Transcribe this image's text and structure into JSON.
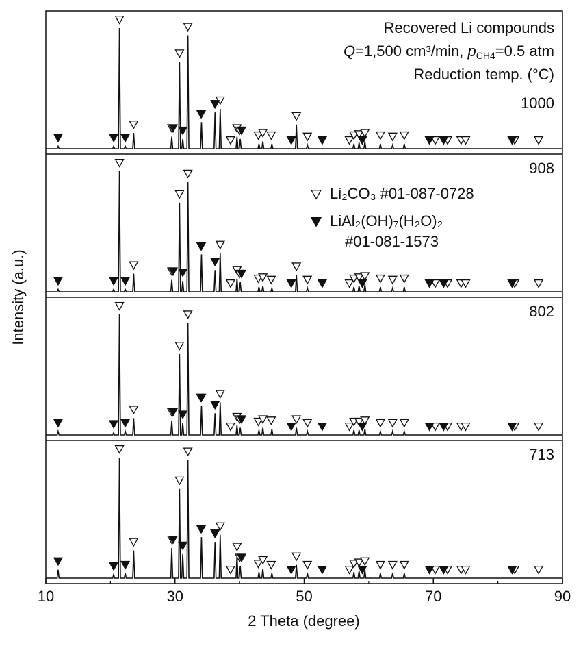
{
  "chart_data": {
    "type": "line",
    "title": "Recovered Li compounds",
    "conditions": [
      "Q",
      "=1,500 cm³/min, ",
      "p",
      "CH4",
      "=0.5 atm"
    ],
    "legend_title": "Reduction temp. (°C)",
    "x_label": "2 Theta (degree)",
    "y_label": "Intensity (a.u.)",
    "xlim": [
      10,
      90
    ],
    "xticks": [
      10,
      30,
      50,
      70,
      90
    ],
    "xminorticks": [
      20,
      40,
      60,
      80
    ],
    "ylim": [
      0,
      100
    ],
    "x": [
      10,
      11.75,
      11.9,
      12.05,
      20.35,
      20.5,
      20.65,
      21.25,
      21.4,
      21.55,
      22.15,
      22.3,
      22.45,
      23.45,
      23.6,
      23.75,
      29.35,
      29.5,
      29.65,
      30.55,
      30.7,
      30.85,
      31.05,
      31.2,
      31.35,
      31.85,
      32.0,
      32.15,
      33.95,
      34.1,
      34.25,
      36.05,
      36.2,
      36.35,
      36.85,
      37.0,
      37.15,
      39.45,
      39.6,
      39.75,
      39.95,
      40.1,
      40.25,
      42.85,
      43.0,
      43.15,
      43.45,
      43.6,
      43.75,
      44.85,
      45.0,
      45.15,
      48.65,
      48.8,
      48.95,
      50.35,
      50.5,
      50.65,
      57.55,
      57.7,
      57.85,
      58.35,
      58.5,
      58.65,
      59.25,
      59.4,
      59.55,
      61.65,
      61.8,
      61.95,
      63.55,
      63.7,
      63.85,
      65.35,
      65.5,
      65.65,
      90
    ],
    "series": [
      {
        "name": "1000",
        "color": "#111111",
        "values": [
          0,
          0,
          2,
          0,
          0,
          2,
          0,
          0,
          100,
          0,
          0,
          2,
          0,
          0,
          13,
          0,
          0,
          10,
          0,
          0,
          72,
          0,
          0,
          8,
          0,
          0,
          94,
          0,
          0,
          22,
          0,
          0,
          30,
          0,
          0,
          33,
          0,
          0,
          10,
          0,
          0,
          8,
          0,
          0,
          4,
          0,
          0,
          6,
          0,
          0,
          4,
          0,
          0,
          20,
          0,
          0,
          3,
          0,
          0,
          4,
          0,
          0,
          5,
          0,
          0,
          6,
          0,
          0,
          4,
          0,
          0,
          3,
          0,
          0,
          4,
          0,
          0
        ]
      },
      {
        "name": "908",
        "color": "#111111",
        "values": [
          0,
          0,
          2,
          0,
          0,
          2,
          0,
          0,
          100,
          0,
          0,
          2,
          0,
          0,
          15,
          0,
          0,
          10,
          0,
          0,
          74,
          0,
          0,
          9,
          0,
          0,
          91,
          0,
          0,
          31,
          0,
          0,
          18,
          0,
          0,
          32,
          0,
          0,
          11,
          0,
          0,
          8,
          0,
          0,
          4,
          0,
          0,
          5,
          0,
          0,
          3,
          0,
          0,
          14,
          0,
          0,
          3,
          0,
          0,
          4,
          0,
          0,
          5,
          0,
          0,
          6,
          0,
          0,
          4,
          0,
          0,
          3,
          0,
          0,
          4,
          0,
          0
        ]
      },
      {
        "name": "802",
        "color": "#111111",
        "values": [
          0,
          0,
          3,
          0,
          0,
          2,
          0,
          0,
          100,
          0,
          0,
          3,
          0,
          0,
          14,
          0,
          0,
          12,
          0,
          0,
          67,
          0,
          0,
          10,
          0,
          0,
          93,
          0,
          0,
          24,
          0,
          0,
          18,
          0,
          0,
          27,
          0,
          0,
          8,
          0,
          0,
          6,
          0,
          0,
          4,
          0,
          0,
          6,
          0,
          0,
          5,
          0,
          0,
          6,
          0,
          0,
          3,
          0,
          0,
          4,
          0,
          0,
          4,
          0,
          0,
          5,
          0,
          0,
          3,
          0,
          0,
          3,
          0,
          0,
          3,
          0,
          0
        ]
      },
      {
        "name": "713",
        "color": "#111111",
        "values": [
          0,
          0,
          7,
          0,
          0,
          3,
          0,
          0,
          100,
          0,
          0,
          4,
          0,
          0,
          23,
          0,
          0,
          25,
          0,
          0,
          74,
          0,
          0,
          20,
          0,
          0,
          98,
          0,
          0,
          34,
          0,
          0,
          30,
          0,
          0,
          36,
          0,
          0,
          19,
          0,
          0,
          10,
          0,
          0,
          5,
          0,
          0,
          8,
          0,
          0,
          4,
          0,
          0,
          11,
          0,
          0,
          4,
          0,
          0,
          5,
          0,
          0,
          6,
          0,
          0,
          7,
          0,
          0,
          4,
          0,
          0,
          4,
          0,
          0,
          4,
          0,
          0
        ]
      }
    ],
    "markers": [
      {
        "name": "Li₂CO₃",
        "card": "#01-087-0728",
        "style": "open",
        "x": [
          21.4,
          23.6,
          29.5,
          30.7,
          32.0,
          34.1,
          36.2,
          37.0,
          38.6,
          39.6,
          40.0,
          42.9,
          43.6,
          44.9,
          48.8,
          50.5,
          57.0,
          57.7,
          58.5,
          59.4,
          61.8,
          63.7,
          65.5,
          70.3,
          72.2,
          74.3,
          75.0,
          82.6,
          86.3
        ]
      },
      {
        "name": "LiAl₂(OH)₇(H₂O)₂",
        "card": "#01-081-1573",
        "style": "filled",
        "x": [
          11.9,
          20.5,
          22.3,
          29.7,
          31.2,
          34.0,
          36.2,
          40.3,
          48.0,
          52.8,
          59.0,
          69.4,
          71.6,
          82.2
        ]
      }
    ]
  }
}
